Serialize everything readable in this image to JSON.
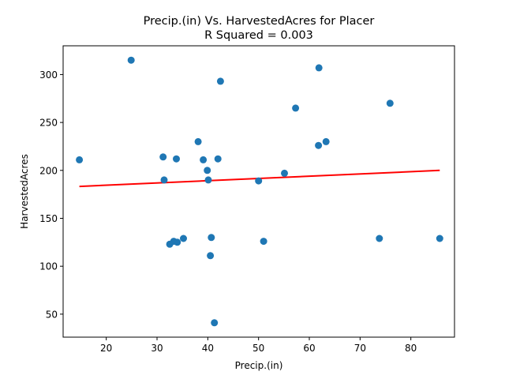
{
  "chart_data": {
    "type": "scatter",
    "title": "Precip.(in) Vs. HarvestedAcres for Placer",
    "subtitle": "R Squared =  0.003",
    "xlabel": "Precip.(in)",
    "ylabel": "HarvestedAcres",
    "xlim": [
      11.5,
      88.6
    ],
    "ylim": [
      26,
      330
    ],
    "xticks": [
      20,
      30,
      40,
      50,
      60,
      70,
      80
    ],
    "yticks": [
      50,
      100,
      150,
      200,
      250,
      300
    ],
    "grid": false,
    "points": [
      {
        "x": 14.7,
        "y": 211
      },
      {
        "x": 24.9,
        "y": 315
      },
      {
        "x": 31.2,
        "y": 214
      },
      {
        "x": 31.4,
        "y": 190
      },
      {
        "x": 32.5,
        "y": 123
      },
      {
        "x": 33.3,
        "y": 126
      },
      {
        "x": 33.8,
        "y": 212
      },
      {
        "x": 34.0,
        "y": 125
      },
      {
        "x": 35.2,
        "y": 129
      },
      {
        "x": 38.1,
        "y": 230
      },
      {
        "x": 39.1,
        "y": 211
      },
      {
        "x": 39.9,
        "y": 200
      },
      {
        "x": 40.1,
        "y": 190
      },
      {
        "x": 40.5,
        "y": 111
      },
      {
        "x": 40.7,
        "y": 130
      },
      {
        "x": 41.3,
        "y": 41
      },
      {
        "x": 42.0,
        "y": 212
      },
      {
        "x": 42.5,
        "y": 293
      },
      {
        "x": 50.0,
        "y": 189
      },
      {
        "x": 51.0,
        "y": 126
      },
      {
        "x": 55.1,
        "y": 197
      },
      {
        "x": 57.3,
        "y": 265
      },
      {
        "x": 61.8,
        "y": 226
      },
      {
        "x": 61.9,
        "y": 307
      },
      {
        "x": 63.3,
        "y": 230
      },
      {
        "x": 73.8,
        "y": 129
      },
      {
        "x": 75.9,
        "y": 270
      },
      {
        "x": 85.7,
        "y": 129
      }
    ],
    "regression_line": {
      "x": [
        14.7,
        85.7
      ],
      "y": [
        183.3,
        200.0
      ]
    },
    "colors": {
      "points": "#1f77b4",
      "regression": "#ff0000"
    }
  }
}
